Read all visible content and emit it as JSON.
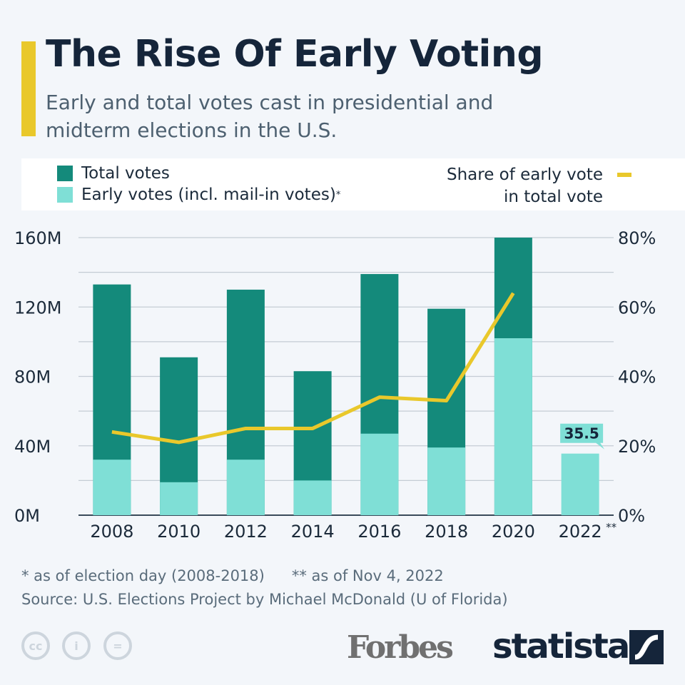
{
  "title": "The Rise Of Early Voting",
  "subtitle": "Early and total votes cast in presidential and midterm elections in the U.S.",
  "legend": {
    "total": "Total votes",
    "early": "Early votes (incl. mail-in votes)",
    "early_sup": "*",
    "share": "Share of early vote",
    "share2": "in total vote"
  },
  "colors": {
    "total": "#148a7b",
    "early": "#7fdfd6",
    "share": "#e9c82b",
    "text": "#15253a"
  },
  "footnotes": {
    "note1": "* as of election day (2008-2018)",
    "note2": "** as of Nov 4, 2022",
    "source": "Source: U.S. Elections Project by Michael McDonald (U of Florida)"
  },
  "logos": {
    "forbes": "Forbes",
    "statista": "statista",
    "cc_icons": [
      "cc-icon",
      "attribution-icon",
      "no-derivatives-icon"
    ]
  },
  "chart_data": {
    "type": "bar",
    "stacked": true,
    "categories": [
      "2008",
      "2010",
      "2012",
      "2014",
      "2016",
      "2018",
      "2020",
      "2022**"
    ],
    "series": [
      {
        "name": "Total votes",
        "unit": "M",
        "values": [
          133,
          91,
          130,
          83,
          139,
          119,
          160,
          null
        ]
      },
      {
        "name": "Early votes (incl. mail-in votes)",
        "unit": "M",
        "values": [
          32,
          19,
          32,
          20,
          47,
          39,
          102,
          35.5
        ]
      },
      {
        "name": "Share of early vote in total vote",
        "type": "line",
        "axis": "right",
        "unit": "%",
        "values": [
          24,
          21,
          25,
          25,
          34,
          33,
          64,
          null
        ]
      }
    ],
    "data_labels": [
      {
        "category": "2022**",
        "text": "35.5"
      }
    ],
    "ylim_left": [
      0,
      160
    ],
    "yticks_left": [
      "0M",
      "40M",
      "80M",
      "120M",
      "160M"
    ],
    "ylim_right": [
      0,
      80
    ],
    "yticks_right": [
      "0%",
      "20%",
      "40%",
      "60%",
      "80%"
    ],
    "grid": true,
    "legend": "top"
  }
}
